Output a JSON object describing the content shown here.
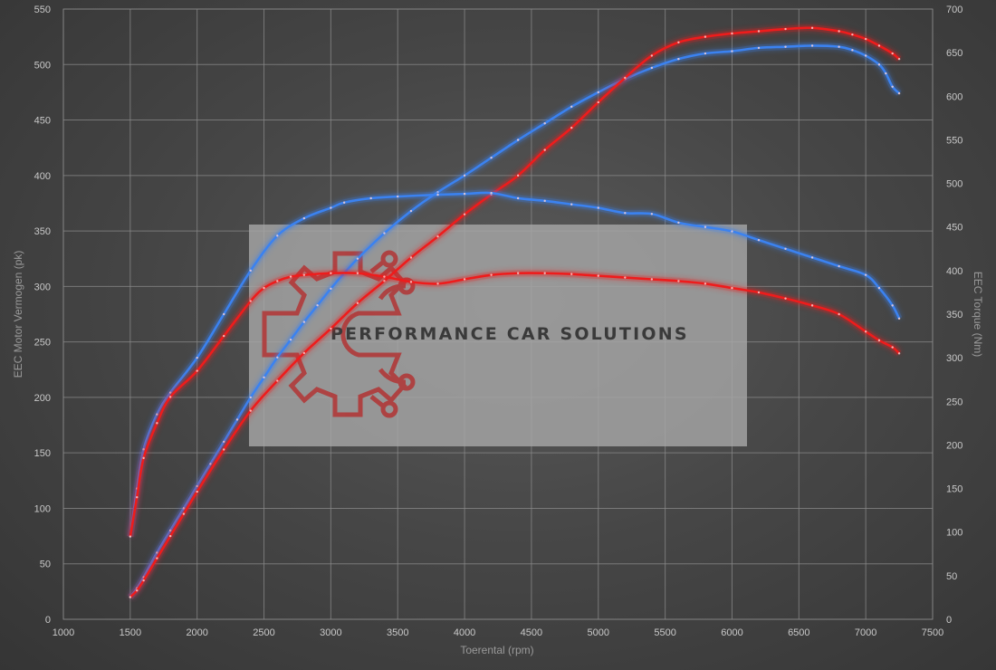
{
  "watermark": {
    "brand_text": "PERFORMANCE CAR SOLUTIONS"
  },
  "colors": {
    "stock": "#ee1c1c",
    "tuned": "#3b82f0",
    "grid": "#8a8a8a",
    "watermark_box": "#a6a6a6",
    "logo": "#b03a3a"
  },
  "chart_data": {
    "type": "line",
    "title": "",
    "xlabel": "Toerental (rpm)",
    "ylabel_left": "EEC Motor Vermogen (pk)",
    "ylabel_right": "EEC Torque (Nm)",
    "xlim": [
      1000,
      7500
    ],
    "ylim_left": [
      0,
      550
    ],
    "ylim_right": [
      0,
      700
    ],
    "grid": true,
    "xticks": [
      "1000",
      "1500",
      "2000",
      "2500",
      "3000",
      "3500",
      "4000",
      "4500",
      "5000",
      "5500",
      "6000",
      "6500",
      "7000",
      "7500"
    ],
    "yticks_left": [
      "0",
      "50",
      "100",
      "150",
      "200",
      "250",
      "300",
      "350",
      "400",
      "450",
      "500",
      "550"
    ],
    "yticks_right": [
      "0",
      "50",
      "100",
      "150",
      "200",
      "250",
      "300",
      "350",
      "400",
      "450",
      "500",
      "550",
      "600",
      "650",
      "700"
    ],
    "series": [
      {
        "axis": "left",
        "color": "#3b82f0",
        "x": [
          1500,
          1550,
          1600,
          1700,
          1800,
          1900,
          2000,
          2100,
          2200,
          2300,
          2400,
          2500,
          2600,
          2700,
          2800,
          2900,
          3000,
          3100,
          3200,
          3400,
          3600,
          3800,
          4000,
          4200,
          4400,
          4600,
          4800,
          5000,
          5200,
          5400,
          5600,
          5800,
          6000,
          6200,
          6400,
          6600,
          6800,
          6900,
          7000,
          7100,
          7150,
          7200,
          7250
        ],
        "y": [
          20,
          28,
          38,
          60,
          80,
          100,
          120,
          140,
          160,
          180,
          200,
          218,
          236,
          252,
          268,
          283,
          298,
          312,
          325,
          348,
          368,
          385,
          400,
          416,
          432,
          447,
          462,
          475,
          487,
          497,
          505,
          510,
          512,
          515,
          516,
          517,
          516,
          513,
          508,
          500,
          492,
          480,
          474
        ]
      },
      {
        "axis": "left",
        "color": "#ee1c1c",
        "x": [
          1500,
          1550,
          1600,
          1700,
          1800,
          1900,
          2000,
          2200,
          2400,
          2600,
          2800,
          3000,
          3200,
          3400,
          3600,
          3800,
          4000,
          4200,
          4400,
          4600,
          4800,
          5000,
          5200,
          5400,
          5600,
          5800,
          6000,
          6200,
          6400,
          6600,
          6800,
          6900,
          7000,
          7100,
          7200,
          7250
        ],
        "y": [
          20,
          26,
          35,
          55,
          75,
          95,
          115,
          153,
          188,
          215,
          240,
          262,
          285,
          305,
          326,
          345,
          365,
          383,
          400,
          423,
          443,
          466,
          488,
          508,
          520,
          525,
          528,
          530,
          532,
          533,
          530,
          527,
          523,
          517,
          510,
          505
        ]
      },
      {
        "axis": "right",
        "color": "#3b82f0",
        "x": [
          1500,
          1550,
          1600,
          1700,
          1800,
          2000,
          2200,
          2400,
          2600,
          2800,
          3000,
          3100,
          3300,
          3500,
          3800,
          4000,
          4200,
          4400,
          4600,
          4800,
          5000,
          5200,
          5400,
          5600,
          5800,
          6000,
          6200,
          6400,
          6600,
          6800,
          7000,
          7100,
          7200,
          7250
        ],
        "y": [
          95,
          150,
          195,
          235,
          260,
          300,
          350,
          400,
          440,
          460,
          472,
          478,
          483,
          485,
          487,
          488,
          489,
          483,
          480,
          476,
          472,
          466,
          465,
          455,
          450,
          445,
          435,
          425,
          415,
          405,
          395,
          380,
          360,
          345
        ]
      },
      {
        "axis": "right",
        "color": "#ee1c1c",
        "x": [
          1500,
          1550,
          1600,
          1700,
          1800,
          2000,
          2200,
          2400,
          2500,
          2600,
          2700,
          2800,
          3000,
          3200,
          3400,
          3600,
          3800,
          4000,
          4200,
          4400,
          4600,
          4800,
          5000,
          5200,
          5400,
          5600,
          5800,
          6000,
          6200,
          6400,
          6600,
          6800,
          7000,
          7100,
          7200,
          7250
        ],
        "y": [
          95,
          140,
          185,
          225,
          255,
          285,
          325,
          365,
          380,
          388,
          393,
          395,
          397,
          397,
          393,
          387,
          385,
          390,
          395,
          397,
          397,
          396,
          394,
          392,
          390,
          388,
          385,
          380,
          375,
          368,
          360,
          350,
          330,
          320,
          312,
          305
        ]
      }
    ]
  }
}
